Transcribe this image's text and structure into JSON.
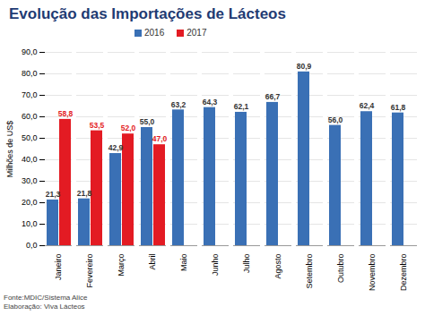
{
  "chart_data": {
    "type": "bar",
    "title": "Evolução das Importações de Lácteos",
    "y_label": "Milhões de US$",
    "categories": [
      "Janeiro",
      "Fevereiro",
      "Março",
      "Abril",
      "Maio",
      "Junho",
      "Julho",
      "Agosto",
      "Setembro",
      "Outubro",
      "Novembro",
      "Dezembro"
    ],
    "series": [
      {
        "name": "2016",
        "color": "#3a70b5",
        "values": [
          21.3,
          21.8,
          42.9,
          55.0,
          63.2,
          64.3,
          62.1,
          66.7,
          80.9,
          56.0,
          62.4,
          61.8
        ],
        "value_labels": [
          "21,3",
          "21,8",
          "42,9",
          "55,0",
          "63,2",
          "64,3",
          "62,1",
          "66,7",
          "80,9",
          "56,0",
          "62,4",
          "61,8"
        ]
      },
      {
        "name": "2017",
        "color": "#e31b23",
        "values": [
          58.8,
          53.5,
          52.0,
          47.0,
          null,
          null,
          null,
          null,
          null,
          null,
          null,
          null
        ],
        "value_labels": [
          "58,8",
          "53,5",
          "52,0",
          "47,0",
          null,
          null,
          null,
          null,
          null,
          null,
          null,
          null
        ]
      }
    ],
    "ylim": [
      0,
      90
    ],
    "yticks": [
      {
        "value": 0,
        "label": "0,0"
      },
      {
        "value": 10,
        "label": "10,0"
      },
      {
        "value": 20,
        "label": "20,0"
      },
      {
        "value": 30,
        "label": "30,0"
      },
      {
        "value": 40,
        "label": "40,0"
      },
      {
        "value": 50,
        "label": "50,0"
      },
      {
        "value": 60,
        "label": "60,0"
      },
      {
        "value": 70,
        "label": "70,0"
      },
      {
        "value": 80,
        "label": "80,0"
      },
      {
        "value": 90,
        "label": "90,0"
      }
    ],
    "grid": true,
    "data_labels": true,
    "legend": "top",
    "annotations": [
      "Fonte:MDIC/Sistema Alice",
      "Elaboração: Viva Lácteos"
    ]
  }
}
